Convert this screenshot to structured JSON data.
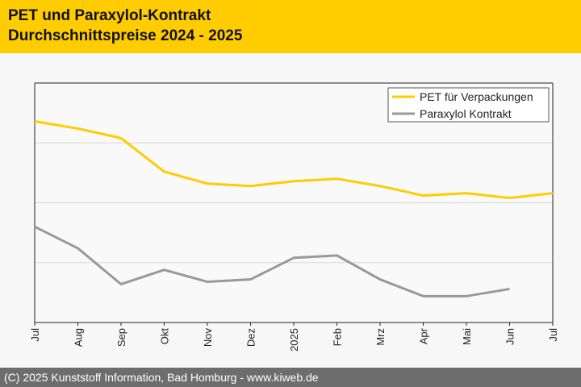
{
  "header": {
    "title_line1": "PET und Paraxylol-Kontrakt",
    "title_line2": "Durchschnittspreise 2024 - 2025"
  },
  "footer": {
    "copyright": "(C) 2025 Kunststoff Information, Bad Homburg - www.kiweb.de"
  },
  "colors": {
    "header_bg": "#ffcc00",
    "pet_line": "#ffcc00",
    "paraxylol_line": "#999999",
    "footer_bg": "#6d6d6d"
  },
  "chart_data": {
    "type": "line",
    "title": "PET und Paraxylol-Kontrakt Durchschnittspreise 2024 - 2025",
    "xlabel": "",
    "ylabel": "",
    "categories": [
      "Jul",
      "Aug",
      "Sep",
      "Okt",
      "Nov",
      "Dez",
      "2025",
      "Feb",
      "Mrz",
      "Apr",
      "Mai",
      "Jun",
      "Jul"
    ],
    "ylim": [
      0,
      100
    ],
    "grid": true,
    "legend_position": "top-right",
    "series": [
      {
        "name": "PET für Verpackungen",
        "values": [
          84,
          81,
          77,
          63,
          58,
          57,
          59,
          60,
          57,
          53,
          54,
          52,
          54
        ]
      },
      {
        "name": "Paraxylol Kontrakt",
        "values": [
          40,
          31,
          16,
          22,
          17,
          18,
          27,
          28,
          18,
          11,
          11,
          14,
          null
        ]
      }
    ]
  }
}
